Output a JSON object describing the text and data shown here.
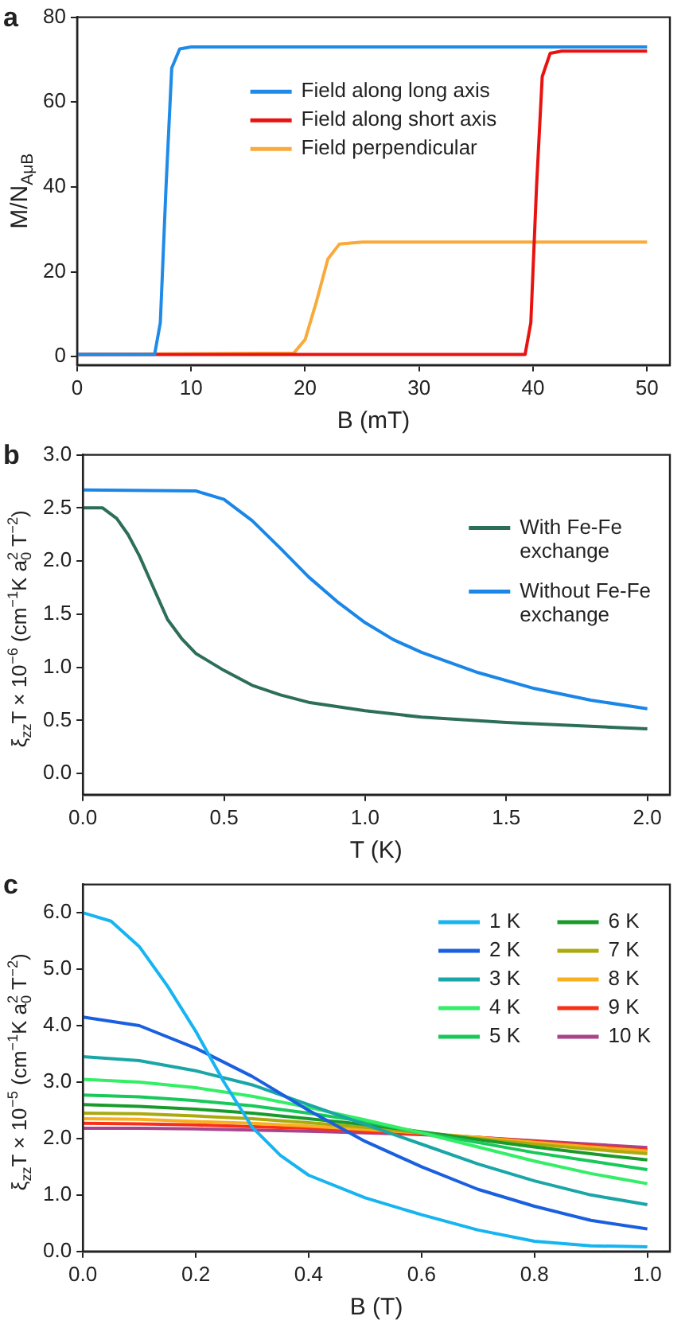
{
  "chart_data": [
    {
      "type": "line",
      "annotations": [
        "a"
      ],
      "xlabel": "B (mT)",
      "ylabel": "M/N$_{AμB}$",
      "xlim": [
        0,
        52
      ],
      "xticks": [
        0,
        10,
        20,
        30,
        40,
        50
      ],
      "ylim": [
        -2,
        80
      ],
      "yticks": [
        0,
        20,
        40,
        60,
        80
      ],
      "grid": false,
      "legend": "top",
      "line_style": "solid",
      "marker": "none",
      "series": [
        {
          "name": "Field along long axis",
          "color": "#1f8be8",
          "x": [
            0,
            6.8,
            7.3,
            7.8,
            8.3,
            9,
            10,
            50
          ],
          "values": [
            0.5,
            0.5,
            8,
            40,
            68,
            72.5,
            73,
            73
          ]
        },
        {
          "name": "Field along short axis",
          "color": "#e8130f",
          "x": [
            0,
            39.3,
            39.8,
            40.3,
            40.8,
            41.5,
            42.5,
            50
          ],
          "values": [
            0.5,
            0.5,
            8,
            40,
            66,
            71.5,
            72,
            72
          ]
        },
        {
          "name": "Field perpendicular",
          "color": "#f9aa3c",
          "x": [
            0,
            19,
            20,
            21,
            22,
            23,
            25,
            50
          ],
          "values": [
            0.5,
            0.8,
            4,
            13,
            23,
            26.5,
            27,
            27
          ]
        }
      ]
    },
    {
      "type": "line",
      "annotations": [
        "b"
      ],
      "xlabel": "T (K)",
      "ylabel": "ξ$_{zz}$T × 10$^{−6}$ (cm$^{−1}$K a$_{0}$$^{2}$ T$^{−2}$)",
      "xlim": [
        0,
        2.08
      ],
      "xticks": [
        {
          "value": 0,
          "label": "0.0"
        },
        {
          "value": 0.5,
          "label": "0.5"
        },
        {
          "value": 1,
          "label": "1.0"
        },
        {
          "value": 1.5,
          "label": "1.5"
        },
        {
          "value": 2,
          "label": "2.0"
        }
      ],
      "ylim": [
        -0.2,
        3.0
      ],
      "yticks": [
        {
          "value": 0,
          "label": "0.0"
        },
        {
          "value": 0.5,
          "label": "0.5"
        },
        {
          "value": 1,
          "label": "1.0"
        },
        {
          "value": 1.5,
          "label": "1.5"
        },
        {
          "value": 2,
          "label": "2.0"
        },
        {
          "value": 2.5,
          "label": "2.5"
        },
        {
          "value": 3,
          "label": "3.0"
        }
      ],
      "grid": false,
      "legend": "top right",
      "line_style": "solid",
      "marker": "none",
      "series": [
        {
          "name": "With Fe-Fe exchange",
          "color": "#2d6e5b",
          "x": [
            0,
            0.07,
            0.12,
            0.16,
            0.2,
            0.25,
            0.3,
            0.35,
            0.4,
            0.5,
            0.6,
            0.7,
            0.8,
            1.0,
            1.2,
            1.5,
            2.0
          ],
          "values": [
            2.5,
            2.5,
            2.4,
            2.25,
            2.05,
            1.75,
            1.45,
            1.27,
            1.13,
            0.97,
            0.83,
            0.74,
            0.67,
            0.59,
            0.53,
            0.48,
            0.42
          ]
        },
        {
          "name": "Without Fe-Fe exchange",
          "color": "#1a86e8",
          "x": [
            0,
            0.4,
            0.5,
            0.6,
            0.7,
            0.8,
            0.9,
            1.0,
            1.1,
            1.2,
            1.4,
            1.6,
            1.8,
            2.0
          ],
          "values": [
            2.67,
            2.66,
            2.58,
            2.38,
            2.12,
            1.85,
            1.62,
            1.42,
            1.26,
            1.14,
            0.95,
            0.8,
            0.69,
            0.61
          ]
        }
      ]
    },
    {
      "type": "line",
      "annotations": [
        "c"
      ],
      "xlabel": "B (T)",
      "ylabel": "ξ$_{zz}$T × 10$^{−5}$ (cm$^{−1}$K a$_{0}$$^{2}$ T$^{−2}$)",
      "xlim": [
        0,
        1.04
      ],
      "xticks": [
        {
          "value": 0,
          "label": "0.0"
        },
        {
          "value": 0.2,
          "label": "0.2"
        },
        {
          "value": 0.4,
          "label": "0.4"
        },
        {
          "value": 0.6,
          "label": "0.6"
        },
        {
          "value": 0.8,
          "label": "0.8"
        },
        {
          "value": 1,
          "label": "1.0"
        }
      ],
      "ylim": [
        0,
        6.5
      ],
      "yticks": [
        {
          "value": 0,
          "label": "0.0"
        },
        {
          "value": 1,
          "label": "1.0"
        },
        {
          "value": 2,
          "label": "2.0"
        },
        {
          "value": 3,
          "label": "3.0"
        },
        {
          "value": 4,
          "label": "4.0"
        },
        {
          "value": 5,
          "label": "5.0"
        },
        {
          "value": 6,
          "label": "6.0"
        }
      ],
      "grid": false,
      "legend": "top right",
      "line_style": "solid",
      "marker": "none",
      "x": [
        0,
        0.1,
        0.2,
        0.3,
        0.4,
        0.5,
        0.6,
        0.7,
        0.8,
        0.9,
        1.0
      ],
      "series": [
        {
          "name": "1 K",
          "color": "#16b4f0",
          "x": [
            0,
            0.05,
            0.1,
            0.15,
            0.2,
            0.25,
            0.3,
            0.35,
            0.4,
            0.5,
            0.6,
            0.7,
            0.8,
            0.9,
            1.0
          ],
          "values": [
            6.0,
            5.85,
            5.4,
            4.7,
            3.9,
            3.0,
            2.2,
            1.7,
            1.35,
            0.95,
            0.65,
            0.38,
            0.18,
            0.1,
            0.08
          ]
        },
        {
          "name": "2 K",
          "color": "#1a5fe0",
          "values": [
            4.15,
            4.0,
            3.6,
            3.1,
            2.5,
            1.95,
            1.5,
            1.1,
            0.8,
            0.55,
            0.4
          ]
        },
        {
          "name": "3 K",
          "color": "#1aa6a6",
          "values": [
            3.45,
            3.38,
            3.2,
            2.95,
            2.6,
            2.25,
            1.9,
            1.55,
            1.25,
            1.0,
            0.83
          ]
        },
        {
          "name": "4 K",
          "color": "#33ee66",
          "values": [
            3.05,
            3.0,
            2.9,
            2.75,
            2.55,
            2.33,
            2.1,
            1.85,
            1.6,
            1.38,
            1.2
          ]
        },
        {
          "name": "5 K",
          "color": "#18c85a",
          "values": [
            2.77,
            2.74,
            2.67,
            2.58,
            2.45,
            2.3,
            2.1,
            1.93,
            1.75,
            1.6,
            1.45
          ]
        },
        {
          "name": "6 K",
          "color": "#1a9a2a",
          "values": [
            2.6,
            2.57,
            2.52,
            2.45,
            2.35,
            2.25,
            2.12,
            1.98,
            1.85,
            1.73,
            1.62
          ]
        },
        {
          "name": "7 K",
          "color": "#aaaa10",
          "values": [
            2.45,
            2.44,
            2.4,
            2.35,
            2.28,
            2.2,
            2.1,
            2.0,
            1.9,
            1.81,
            1.73
          ]
        },
        {
          "name": "8 K",
          "color": "#f8b020",
          "values": [
            2.35,
            2.34,
            2.3,
            2.27,
            2.22,
            2.16,
            2.1,
            2.02,
            1.93,
            1.85,
            1.78
          ]
        },
        {
          "name": "9 K",
          "color": "#f83018",
          "values": [
            2.27,
            2.26,
            2.24,
            2.21,
            2.18,
            2.13,
            2.08,
            2.02,
            1.95,
            1.87,
            1.8
          ]
        },
        {
          "name": "10 K",
          "color": "#a8438c",
          "values": [
            2.18,
            2.18,
            2.17,
            2.15,
            2.13,
            2.1,
            2.07,
            2.02,
            1.96,
            1.9,
            1.84
          ]
        }
      ]
    }
  ]
}
